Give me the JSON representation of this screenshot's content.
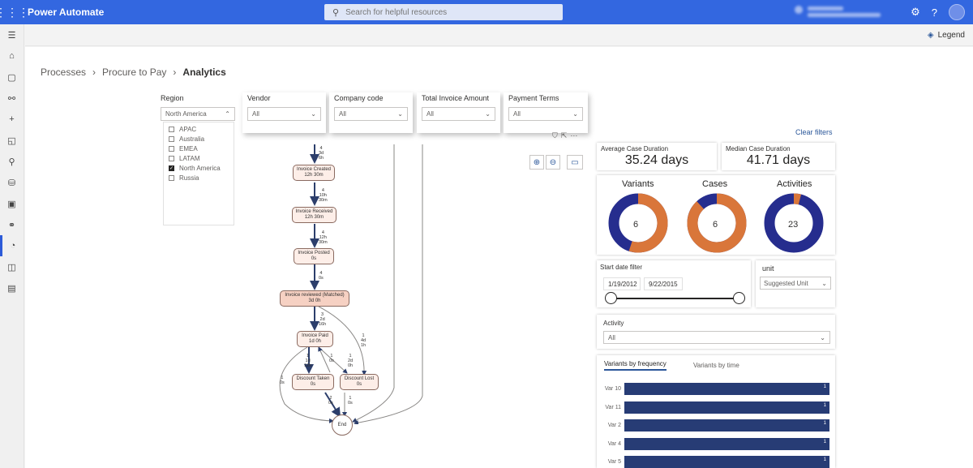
{
  "app": {
    "title": "Power Automate"
  },
  "search": {
    "placeholder": "Search for helpful resources"
  },
  "command_bar": {
    "legend_label": "Legend"
  },
  "breadcrumb": {
    "items": [
      "Processes",
      "Procure to Pay",
      "Analytics"
    ]
  },
  "filters": [
    {
      "label": "Region",
      "value": "North America"
    },
    {
      "label": "Vendor",
      "value": "All"
    },
    {
      "label": "Company code",
      "value": "All"
    },
    {
      "label": "Total Invoice Amount",
      "value": "All"
    },
    {
      "label": "Payment Terms",
      "value": "All"
    }
  ],
  "region_options": [
    {
      "label": "APAC",
      "checked": false
    },
    {
      "label": "Australia",
      "checked": false
    },
    {
      "label": "EMEA",
      "checked": false
    },
    {
      "label": "LATAM",
      "checked": false
    },
    {
      "label": "North America",
      "checked": true
    },
    {
      "label": "Russia",
      "checked": false
    }
  ],
  "clear_filters": "Clear filters",
  "process_map": {
    "nodes": [
      {
        "name": "Invoice Created",
        "duration": "12h 30m"
      },
      {
        "name": "Invoice Received",
        "duration": "12h 30m"
      },
      {
        "name": "Invoice Posted",
        "duration": "0s"
      },
      {
        "name": "Invoice reviewed (Matched)",
        "duration": "3d 0h"
      },
      {
        "name": "Invoice Paid",
        "duration": "1d 0h"
      },
      {
        "name": "Discount Taken",
        "duration": "0s"
      },
      {
        "name": "Discount Lost",
        "duration": "0s"
      },
      {
        "name": "End",
        "duration": ""
      }
    ],
    "edges": [
      {
        "count": "4",
        "duration": "3d 6h"
      },
      {
        "count": "4",
        "duration": "10h 30m"
      },
      {
        "count": "4",
        "duration": "12h 30m"
      },
      {
        "count": "4",
        "duration": "0s"
      },
      {
        "count": "3",
        "duration": "2d 16h"
      },
      {
        "count": "1",
        "duration": "4d 1h"
      },
      {
        "count": "1",
        "duration": "1d 12h"
      },
      {
        "count": "1",
        "duration": "0s"
      },
      {
        "count": "1",
        "duration": "2d 0h"
      },
      {
        "count": "1",
        "duration": "0s"
      },
      {
        "count": "2",
        "duration": "0s"
      },
      {
        "count": "1",
        "duration": "0s"
      }
    ]
  },
  "kpis": {
    "avg_case_duration": {
      "label": "Average Case Duration",
      "value": "35.24 days"
    },
    "median_case_duration": {
      "label": "Median Case Duration",
      "value": "41.71 days"
    }
  },
  "donuts": [
    {
      "label": "Variants",
      "value": "6",
      "fraction_primary": 0.55,
      "primary_color": "#d9763a",
      "secondary_color": "#262d8e"
    },
    {
      "label": "Cases",
      "value": "6",
      "fraction_primary": 0.88,
      "primary_color": "#d9763a",
      "secondary_color": "#262d8e"
    },
    {
      "label": "Activities",
      "value": "23",
      "fraction_primary": 0.04,
      "primary_color": "#d9763a",
      "secondary_color": "#262d8e"
    }
  ],
  "date_filter": {
    "label": "Start date filter",
    "start": "1/19/2012",
    "end": "9/22/2015"
  },
  "unit_filter": {
    "label": "unit",
    "value": "Suggested Unit"
  },
  "activity_filter": {
    "label": "Activity",
    "value": "All"
  },
  "variants_tabs": {
    "active": "Variants by frequency",
    "inactive": "Variants by time"
  },
  "variants": [
    {
      "label": "Var 10",
      "value": "1"
    },
    {
      "label": "Var 11",
      "value": "1"
    },
    {
      "label": "Var 2",
      "value": "1"
    },
    {
      "label": "Var 4",
      "value": "1"
    },
    {
      "label": "Var 5",
      "value": "1"
    }
  ],
  "colors": {
    "accent": "#3367e0",
    "bar": "#273c75",
    "donut_orange": "#d9763a",
    "donut_navy": "#262d8e"
  }
}
